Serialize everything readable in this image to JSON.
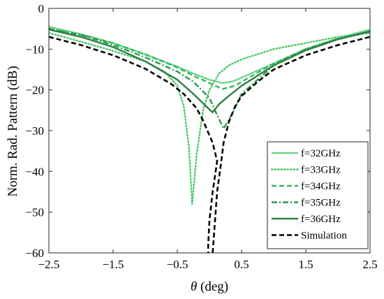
{
  "chart_data": {
    "type": "line",
    "title": "",
    "xlabel": "θ (deg)",
    "xlabel_symbol": "θ",
    "xlabel_unit": " (deg)",
    "ylabel": "Norm. Rad. Pattern (dB)",
    "xlim": [
      -2.5,
      2.5
    ],
    "ylim": [
      -60,
      0
    ],
    "xticks": [
      -2.5,
      -1.5,
      -0.5,
      0.5,
      1.5,
      2.5
    ],
    "xtick_labels": [
      "−2.5",
      "−1.5",
      "−0.5",
      "0.5",
      "1.5",
      "2.5"
    ],
    "yticks": [
      0,
      -10,
      -20,
      -30,
      -40,
      -50,
      -60
    ],
    "ytick_labels": [
      "0",
      "−10",
      "−20",
      "−30",
      "−40",
      "−50",
      "−60"
    ],
    "grid": false,
    "legend_position": "bottom-right",
    "series": [
      {
        "name": "f=32GHz",
        "color": "#6fd68c",
        "dash": "solid",
        "points": [
          [
            -2.5,
            -4.5
          ],
          [
            -2.0,
            -6.3
          ],
          [
            -1.5,
            -8.5
          ],
          [
            -1.0,
            -11.3
          ],
          [
            -0.5,
            -14.3
          ],
          [
            -0.25,
            -16.0
          ],
          [
            0.0,
            -17.5
          ],
          [
            0.2,
            -18.3
          ],
          [
            0.35,
            -18.0
          ],
          [
            0.5,
            -17.0
          ],
          [
            1.0,
            -13.5
          ],
          [
            1.5,
            -10.0
          ],
          [
            2.0,
            -7.3
          ],
          [
            2.5,
            -5.2
          ]
        ]
      },
      {
        "name": "f=33GHz",
        "color": "#4cc76c",
        "dash": "dot",
        "points": [
          [
            -2.5,
            -6.0
          ],
          [
            -2.0,
            -8.2
          ],
          [
            -1.5,
            -10.4
          ],
          [
            -1.0,
            -13.0
          ],
          [
            -0.7,
            -15.5
          ],
          [
            -0.5,
            -19.0
          ],
          [
            -0.4,
            -24.0
          ],
          [
            -0.32,
            -34.0
          ],
          [
            -0.27,
            -48.0
          ],
          [
            -0.2,
            -36.0
          ],
          [
            -0.1,
            -25.0
          ],
          [
            0.0,
            -20.0
          ],
          [
            0.15,
            -16.0
          ],
          [
            0.3,
            -14.0
          ],
          [
            0.5,
            -12.5
          ],
          [
            1.0,
            -10.0
          ],
          [
            1.5,
            -8.5
          ],
          [
            2.0,
            -7.0
          ],
          [
            2.5,
            -6.0
          ]
        ]
      },
      {
        "name": "f=34GHz",
        "color": "#33b65a",
        "dash": "dash",
        "points": [
          [
            -2.5,
            -5.0
          ],
          [
            -2.0,
            -6.5
          ],
          [
            -1.5,
            -8.5
          ],
          [
            -1.0,
            -11.3
          ],
          [
            -0.5,
            -14.5
          ],
          [
            -0.25,
            -16.5
          ],
          [
            0.0,
            -18.3
          ],
          [
            0.2,
            -19.8
          ],
          [
            0.4,
            -19.0
          ],
          [
            0.5,
            -18.0
          ],
          [
            1.0,
            -13.5
          ],
          [
            1.5,
            -10.0
          ],
          [
            2.0,
            -7.6
          ],
          [
            2.5,
            -5.6
          ]
        ]
      },
      {
        "name": "f=35GHz",
        "color": "#2a9a4e",
        "dash": "dashdot",
        "points": [
          [
            -2.5,
            -5.0
          ],
          [
            -2.0,
            -6.5
          ],
          [
            -1.5,
            -9.0
          ],
          [
            -1.0,
            -12.0
          ],
          [
            -0.5,
            -15.5
          ],
          [
            -0.25,
            -18.0
          ],
          [
            0.0,
            -22.0
          ],
          [
            0.1,
            -25.5
          ],
          [
            0.22,
            -29.5
          ],
          [
            0.35,
            -26.0
          ],
          [
            0.5,
            -21.0
          ],
          [
            1.0,
            -14.0
          ],
          [
            1.5,
            -10.0
          ],
          [
            2.0,
            -7.5
          ],
          [
            2.5,
            -5.8
          ]
        ]
      },
      {
        "name": "f=36GHz",
        "color": "#2d7f45",
        "dash": "solid",
        "points": [
          [
            -2.5,
            -5.2
          ],
          [
            -2.0,
            -7.0
          ],
          [
            -1.5,
            -9.5
          ],
          [
            -1.0,
            -13.0
          ],
          [
            -0.5,
            -17.5
          ],
          [
            -0.25,
            -21.0
          ],
          [
            0.0,
            -24.8
          ],
          [
            0.05,
            -25.5
          ],
          [
            0.15,
            -23.5
          ],
          [
            0.3,
            -21.5
          ],
          [
            0.5,
            -19.0
          ],
          [
            1.0,
            -14.0
          ],
          [
            1.5,
            -10.3
          ],
          [
            2.0,
            -7.6
          ],
          [
            2.5,
            -5.6
          ]
        ]
      },
      {
        "name": "Simulation",
        "color": "#000000",
        "dash": "dash",
        "points": [
          [
            -2.5,
            -7.0
          ],
          [
            -2.0,
            -9.0
          ],
          [
            -1.5,
            -11.5
          ],
          [
            -1.0,
            -14.8
          ],
          [
            -0.6,
            -18.5
          ],
          [
            -0.4,
            -21.0
          ],
          [
            -0.2,
            -24.5
          ],
          [
            -0.1,
            -27.5
          ],
          [
            0.05,
            -33.0
          ],
          [
            0.12,
            -37.5
          ],
          [
            0.05,
            -45.0
          ],
          [
            0.0,
            -52.0
          ],
          [
            -0.02,
            -58.0
          ],
          [
            -0.02,
            -60.0
          ]
        ]
      },
      {
        "name": "",
        "color": "#000000",
        "dash": "dash",
        "points": [
          [
            0.05,
            -60.0
          ],
          [
            0.12,
            -45.0
          ],
          [
            0.18,
            -38.0
          ],
          [
            0.22,
            -33.0
          ],
          [
            0.3,
            -28.0
          ],
          [
            0.4,
            -24.0
          ],
          [
            0.5,
            -21.5
          ],
          [
            0.75,
            -18.0
          ],
          [
            1.0,
            -15.0
          ],
          [
            1.5,
            -11.5
          ],
          [
            2.0,
            -9.0
          ],
          [
            2.5,
            -7.0
          ]
        ]
      }
    ]
  }
}
